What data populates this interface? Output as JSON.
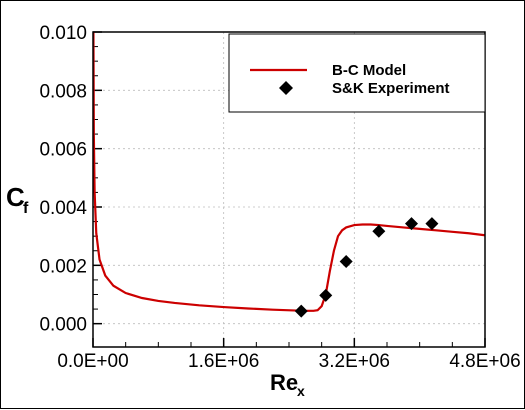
{
  "chart_data": {
    "type": "line",
    "xlabel": {
      "main": "Re",
      "sub": "x"
    },
    "ylabel": {
      "main": "C",
      "sub": "f"
    },
    "xlim": [
      0,
      4800000
    ],
    "ylim": [
      -0.0008,
      0.01
    ],
    "x_ticks": [
      {
        "value": 0,
        "label": "0.0E+00"
      },
      {
        "value": 1600000,
        "label": "1.6E+06"
      },
      {
        "value": 3200000,
        "label": "3.2E+06"
      },
      {
        "value": 4800000,
        "label": "4.8E+06"
      }
    ],
    "y_ticks": [
      {
        "value": 0.0,
        "label": "0.000"
      },
      {
        "value": 0.002,
        "label": "0.002"
      },
      {
        "value": 0.004,
        "label": "0.004"
      },
      {
        "value": 0.006,
        "label": "0.006"
      },
      {
        "value": 0.008,
        "label": "0.008"
      },
      {
        "value": 0.01,
        "label": "0.010"
      }
    ],
    "grid": true,
    "legend_position": "top-right",
    "series": [
      {
        "name": "B-C Model",
        "kind": "line",
        "color": "#cc0000",
        "x": [
          5000,
          10000,
          20000,
          40000,
          80000,
          150000,
          250000,
          400000,
          600000,
          800000,
          1000000,
          1300000,
          1600000,
          1900000,
          2200000,
          2500000,
          2600000,
          2700000,
          2750000,
          2800000,
          2850000,
          2900000,
          2950000,
          3000000,
          3050000,
          3100000,
          3200000,
          3300000,
          3400000,
          3500000,
          3600000,
          3800000,
          4000000,
          4200000,
          4400000,
          4600000,
          4800000
        ],
        "y": [
          0.0102,
          0.0065,
          0.0045,
          0.0031,
          0.0022,
          0.00165,
          0.0013,
          0.00105,
          0.00088,
          0.00078,
          0.00071,
          0.00063,
          0.00057,
          0.00052,
          0.00048,
          0.00045,
          0.00044,
          0.00044,
          0.00046,
          0.0006,
          0.001,
          0.0018,
          0.0025,
          0.003,
          0.0032,
          0.0033,
          0.00338,
          0.0034,
          0.0034,
          0.00338,
          0.00335,
          0.0033,
          0.00325,
          0.0032,
          0.00315,
          0.0031,
          0.00303
        ]
      },
      {
        "name": "S&K Experiment",
        "kind": "scatter",
        "marker": "diamond",
        "color": "#000000",
        "x": [
          2550000,
          2850000,
          3100000,
          3500000,
          3900000,
          4150000
        ],
        "y": [
          0.00043,
          0.00097,
          0.00213,
          0.00317,
          0.00343,
          0.00343
        ]
      }
    ]
  }
}
